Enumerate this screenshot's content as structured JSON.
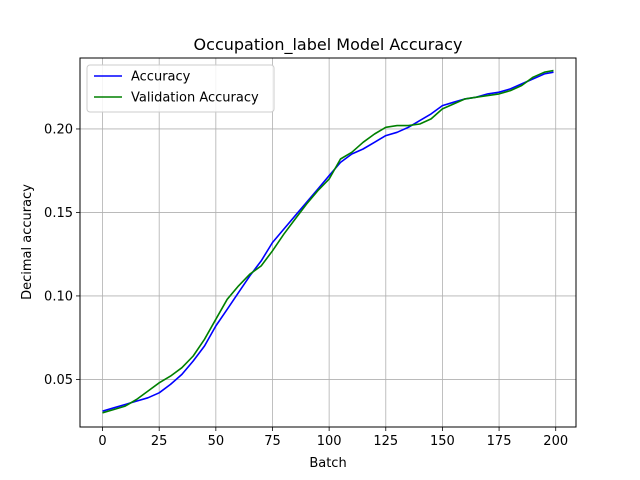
{
  "chart_data": {
    "type": "line",
    "title": "Occupation_label Model Accuracy",
    "xlabel": "Batch",
    "ylabel": "Decimal accuracy",
    "xlim": [
      -9.95,
      208.95
    ],
    "ylim": [
      0.0215,
      0.2425
    ],
    "xticks": [
      0,
      25,
      50,
      75,
      100,
      125,
      150,
      175,
      200
    ],
    "yticks": [
      0.05,
      0.1,
      0.15,
      0.2
    ],
    "ytick_labels": [
      "0.05",
      "0.10",
      "0.15",
      "0.20"
    ],
    "grid": true,
    "legend_position": "top-left",
    "x": [
      0,
      5,
      10,
      15,
      20,
      25,
      30,
      35,
      40,
      45,
      50,
      55,
      60,
      65,
      70,
      75,
      80,
      85,
      90,
      95,
      100,
      105,
      110,
      115,
      120,
      125,
      130,
      135,
      140,
      145,
      150,
      155,
      160,
      165,
      170,
      175,
      180,
      185,
      190,
      195,
      199
    ],
    "series": [
      {
        "name": "Accuracy",
        "color": "#0000ff",
        "values": [
          0.031,
          0.033,
          0.035,
          0.037,
          0.039,
          0.042,
          0.047,
          0.053,
          0.061,
          0.07,
          0.082,
          0.092,
          0.102,
          0.112,
          0.121,
          0.132,
          0.14,
          0.148,
          0.156,
          0.164,
          0.172,
          0.18,
          0.185,
          0.188,
          0.192,
          0.196,
          0.198,
          0.201,
          0.205,
          0.209,
          0.214,
          0.216,
          0.218,
          0.219,
          0.221,
          0.222,
          0.224,
          0.227,
          0.23,
          0.233,
          0.234
        ]
      },
      {
        "name": "Validation Accuracy",
        "color": "#008000",
        "values": [
          0.03,
          0.032,
          0.034,
          0.038,
          0.043,
          0.048,
          0.052,
          0.057,
          0.064,
          0.074,
          0.086,
          0.098,
          0.106,
          0.113,
          0.118,
          0.127,
          0.137,
          0.146,
          0.155,
          0.163,
          0.17,
          0.182,
          0.186,
          0.192,
          0.197,
          0.201,
          0.202,
          0.202,
          0.203,
          0.206,
          0.212,
          0.215,
          0.218,
          0.219,
          0.22,
          0.221,
          0.223,
          0.226,
          0.231,
          0.234,
          0.235
        ]
      }
    ]
  }
}
